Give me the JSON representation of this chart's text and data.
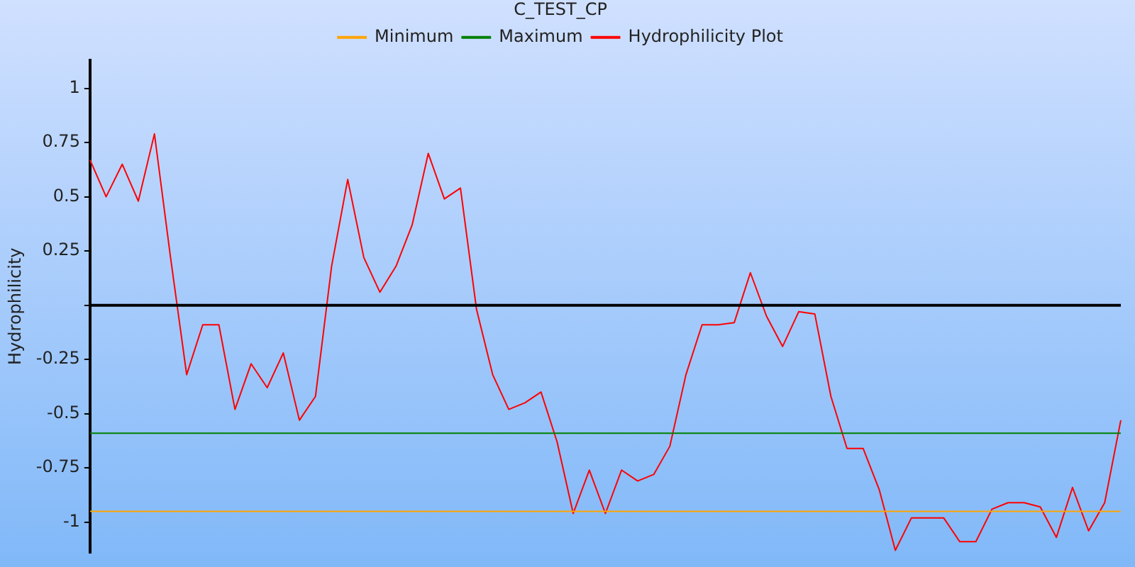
{
  "chart_data": {
    "type": "line",
    "title": "C_TEST_CP",
    "ylabel": "Hydrophilicity",
    "categories": [
      null,
      null,
      null,
      null,
      null,
      null,
      null,
      null,
      null,
      null,
      null,
      null,
      null,
      null,
      null,
      null,
      null,
      null,
      null,
      null,
      null,
      null,
      null,
      null,
      null,
      null,
      null,
      null,
      null,
      null,
      null,
      null,
      null,
      null,
      null,
      null,
      null,
      null,
      null,
      null,
      null,
      null,
      null,
      null,
      null,
      null,
      null,
      null,
      null,
      null,
      null,
      null,
      null,
      null,
      null,
      null,
      null,
      null,
      null,
      null,
      null,
      null,
      null,
      null,
      null
    ],
    "series": [
      {
        "name": "Minimum",
        "color": "#ffa500",
        "values": [
          -0.95,
          -0.95,
          -0.95,
          -0.95,
          -0.95,
          -0.95,
          -0.95,
          -0.95,
          -0.95,
          -0.95,
          -0.95,
          -0.95,
          -0.95,
          -0.95,
          -0.95,
          -0.95,
          -0.95,
          -0.95,
          -0.95,
          -0.95,
          -0.95,
          -0.95,
          -0.95,
          -0.95,
          -0.95,
          -0.95,
          -0.95,
          -0.95,
          -0.95,
          -0.95,
          -0.95,
          -0.95,
          -0.95,
          -0.95,
          -0.95,
          -0.95,
          -0.95,
          -0.95,
          -0.95,
          -0.95,
          -0.95,
          -0.95,
          -0.95,
          -0.95,
          -0.95,
          -0.95,
          -0.95,
          -0.95,
          -0.95,
          -0.95,
          -0.95,
          -0.95,
          -0.95,
          -0.95,
          -0.95,
          -0.95,
          -0.95,
          -0.95,
          -0.95,
          -0.95,
          -0.95,
          -0.95,
          -0.95,
          -0.95,
          -0.95
        ]
      },
      {
        "name": "Maximum",
        "color": "#008000",
        "values": [
          -0.59,
          -0.59,
          -0.59,
          -0.59,
          -0.59,
          -0.59,
          -0.59,
          -0.59,
          -0.59,
          -0.59,
          -0.59,
          -0.59,
          -0.59,
          -0.59,
          -0.59,
          -0.59,
          -0.59,
          -0.59,
          -0.59,
          -0.59,
          -0.59,
          -0.59,
          -0.59,
          -0.59,
          -0.59,
          -0.59,
          -0.59,
          -0.59,
          -0.59,
          -0.59,
          -0.59,
          -0.59,
          -0.59,
          -0.59,
          -0.59,
          -0.59,
          -0.59,
          -0.59,
          -0.59,
          -0.59,
          -0.59,
          -0.59,
          -0.59,
          -0.59,
          -0.59,
          -0.59,
          -0.59,
          -0.59,
          -0.59,
          -0.59,
          -0.59,
          -0.59,
          -0.59,
          -0.59,
          -0.59,
          -0.59,
          -0.59,
          -0.59,
          -0.59,
          -0.59,
          -0.59,
          -0.59,
          -0.59,
          -0.59,
          -0.59
        ]
      },
      {
        "name": "Hydrophilicity Plot",
        "color": "#ff0000",
        "values": [
          0.67,
          0.5,
          0.65,
          0.48,
          0.79,
          0.22,
          -0.32,
          -0.09,
          -0.09,
          -0.48,
          -0.27,
          -0.38,
          -0.22,
          -0.53,
          -0.42,
          0.18,
          0.58,
          0.22,
          0.06,
          0.18,
          0.37,
          0.7,
          0.49,
          0.54,
          -0.02,
          -0.32,
          -0.48,
          -0.45,
          -0.4,
          -0.63,
          -0.96,
          -0.76,
          -0.96,
          -0.76,
          -0.81,
          -0.78,
          -0.65,
          -0.32,
          -0.09,
          -0.09,
          -0.08,
          0.15,
          -0.05,
          -0.19,
          -0.03,
          -0.04,
          -0.42,
          -0.66,
          -0.66,
          -0.85,
          -1.13,
          -0.98,
          -0.98,
          -0.98,
          -1.09,
          -1.09,
          -0.94,
          -0.91,
          -0.91,
          -0.93,
          -1.07,
          -0.84,
          -1.04,
          -0.91,
          -0.53
        ]
      }
    ],
    "ylim": [
      -1.14,
      1.13
    ],
    "yticks": [
      1,
      0.75,
      0.5,
      0.25,
      {
        "value": 0,
        "label": null
      },
      -0.25,
      -0.5,
      -0.75,
      -1
    ],
    "ref_lines": [
      {
        "axis": "y",
        "value": 0,
        "color": "#000000"
      }
    ],
    "grid": false,
    "legend": "top",
    "marker": "none",
    "tick_labels": "y"
  }
}
